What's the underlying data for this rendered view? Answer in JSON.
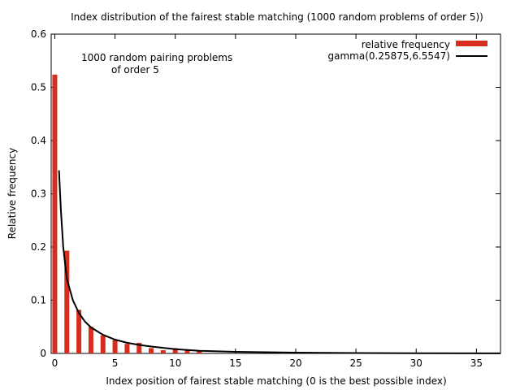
{
  "chart_data": {
    "type": "bar",
    "title": "Index distribution of the fairest stable matching (1000 random problems of order 5))",
    "xlabel": "Index position of fairest stable matching (0 is the best possible index)",
    "ylabel": "Relative frequency",
    "xlim": [
      -0.3,
      37
    ],
    "ylim": [
      0,
      0.6
    ],
    "xticks": [
      0,
      5,
      10,
      15,
      20,
      25,
      30,
      35
    ],
    "yticks": [
      0,
      0.1,
      0.2,
      0.3,
      0.4,
      0.5,
      0.6
    ],
    "annotation": [
      "1000 random pairing problems",
      "of order 5"
    ],
    "legend_position": "top-right",
    "bar_color": "#d62d1f",
    "curve_color": "#000000",
    "series": [
      {
        "name": "relative frequency",
        "kind": "bar",
        "x": [
          0,
          1,
          2,
          3,
          4,
          5,
          6,
          7,
          8,
          9,
          10,
          11,
          12,
          19
        ],
        "values": [
          0.524,
          0.193,
          0.082,
          0.05,
          0.034,
          0.025,
          0.018,
          0.02,
          0.01,
          0.006,
          0.01,
          0.006,
          0.006,
          0.002
        ]
      },
      {
        "name": "gamma(0.25875,6.5547)",
        "kind": "line",
        "x": [
          0.35,
          0.5,
          0.7,
          1.0,
          1.5,
          2.0,
          2.5,
          3.0,
          4.0,
          5.0,
          6.0,
          7.0,
          8.0,
          10.0,
          12.0,
          15.0,
          20.0,
          25.0,
          30.0,
          37.0
        ],
        "values": [
          0.344,
          0.27,
          0.2,
          0.14,
          0.1,
          0.076,
          0.06,
          0.049,
          0.035,
          0.026,
          0.02,
          0.016,
          0.013,
          0.008,
          0.005,
          0.003,
          0.0015,
          0.0007,
          0.0003,
          0.0001
        ]
      }
    ]
  }
}
